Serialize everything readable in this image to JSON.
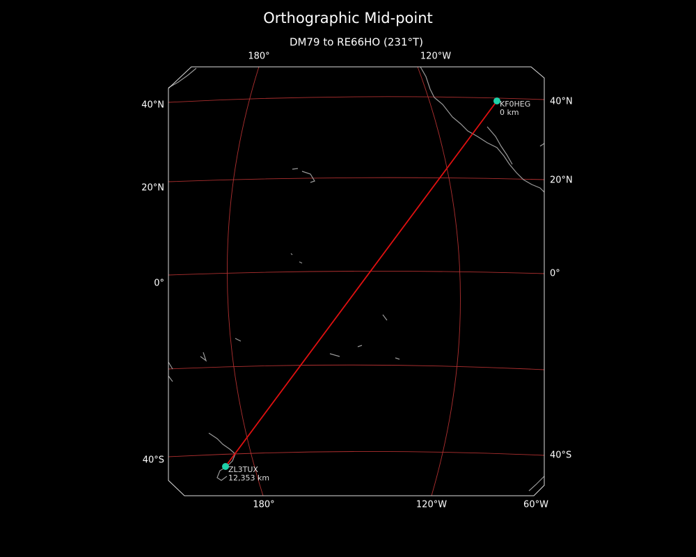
{
  "title": "Orthographic Mid-point",
  "subtitle": "DM79 to RE66HO (231°T)",
  "top_labels": [
    "180°",
    "120°W"
  ],
  "bottom_labels": [
    "180°",
    "120°W",
    "60°W"
  ],
  "left_labels": [
    "40°N",
    "20°N",
    "0°",
    "40°S"
  ],
  "right_labels": [
    "40°N",
    "20°N",
    "0°",
    "40°S"
  ],
  "stations": [
    {
      "call": "KF0HEG",
      "distance": "0 km"
    },
    {
      "call": "ZL3TUX",
      "distance": "12,353 km"
    }
  ]
}
